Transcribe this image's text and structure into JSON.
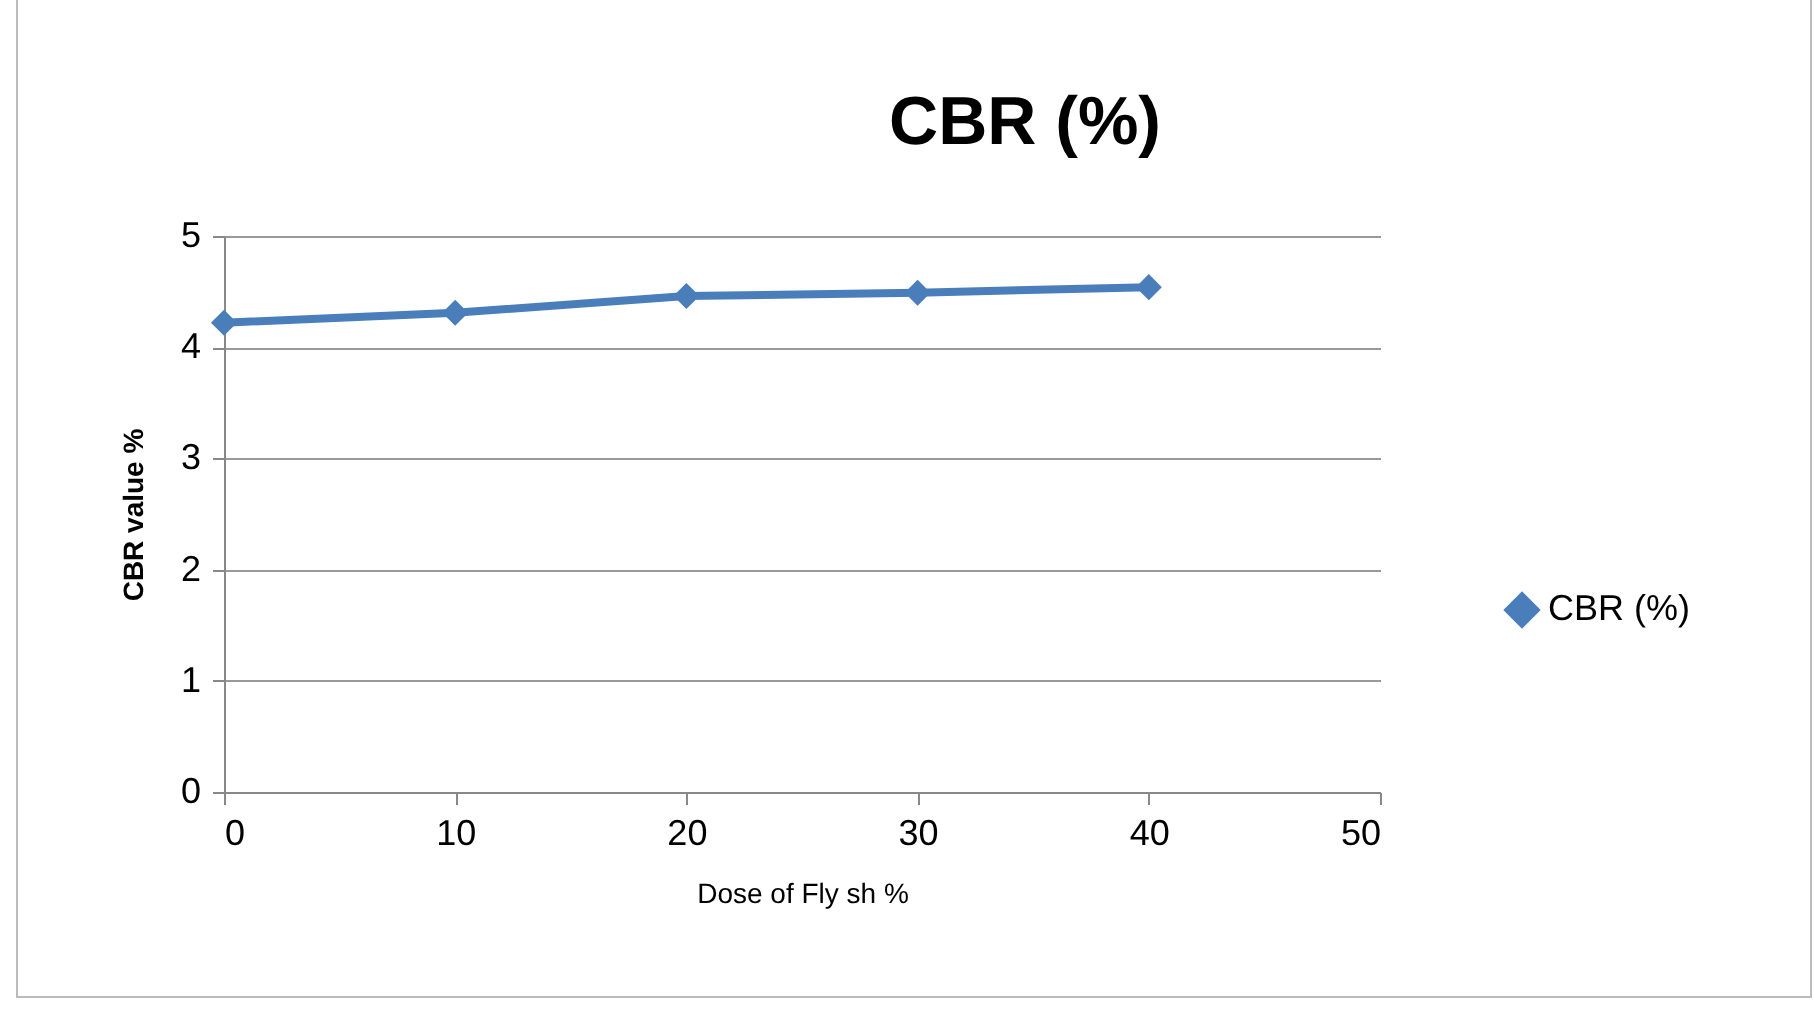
{
  "chart_data": {
    "type": "line",
    "title": "CBR (%)",
    "xlabel": "Dose of Fly sh %",
    "ylabel": "CBR value %",
    "x": [
      0,
      10,
      20,
      30,
      40
    ],
    "series": [
      {
        "name": "CBR (%)",
        "color": "#4a7ebb",
        "values": [
          4.22,
          4.31,
          4.46,
          4.49,
          4.54
        ]
      }
    ],
    "xlim": [
      0,
      50
    ],
    "xticks": [
      0,
      10,
      20,
      30,
      40,
      50
    ],
    "ylim": [
      0,
      5
    ],
    "yticks": [
      0,
      1,
      2,
      3,
      4,
      5
    ],
    "grid": "y",
    "legend": "right",
    "marker": "diamond",
    "line_style": "solid"
  }
}
